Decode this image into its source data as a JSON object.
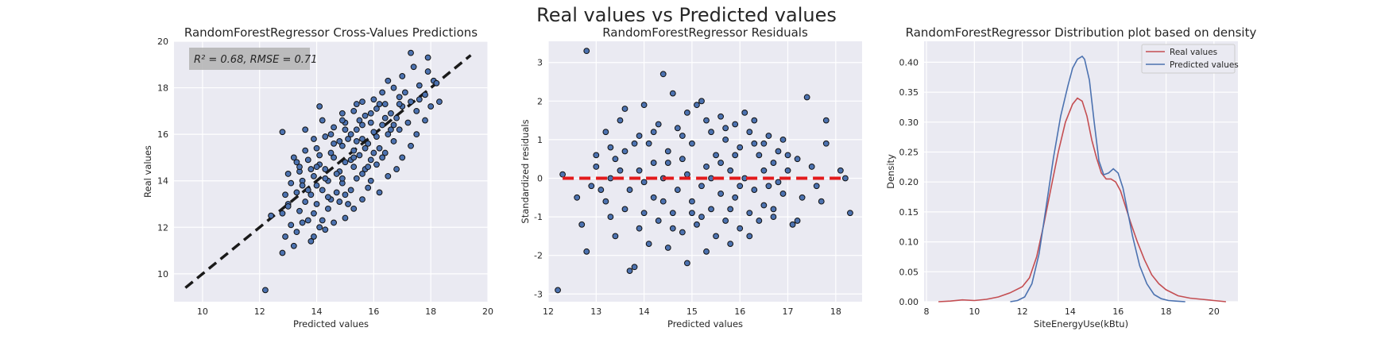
{
  "figure": {
    "suptitle": "Real values vs Predicted values"
  },
  "chart_data": [
    {
      "type": "scatter",
      "title": "RandomForestRegressor Cross-Values Predictions",
      "xlabel": "Predicted values",
      "ylabel": "Real values",
      "xlim": [
        9,
        20
      ],
      "ylim": [
        8.8,
        20
      ],
      "xticks": [
        10,
        12,
        14,
        16,
        18,
        20
      ],
      "yticks": [
        10,
        12,
        14,
        16,
        18,
        20
      ],
      "grid": true,
      "annotation": {
        "r2_text": "R² = 0.68, RMSE = 0.71"
      },
      "reference_line": {
        "style": "dashed",
        "color": "#1a1a1a",
        "points": [
          [
            9.4,
            9.4
          ],
          [
            19.4,
            19.4
          ]
        ]
      },
      "points": [
        [
          12.2,
          9.3
        ],
        [
          12.8,
          10.9
        ],
        [
          13.2,
          11.2
        ],
        [
          12.9,
          11.6
        ],
        [
          13.3,
          11.8
        ],
        [
          13.8,
          11.4
        ],
        [
          13.9,
          11.6
        ],
        [
          14.3,
          11.9
        ],
        [
          13.1,
          12.1
        ],
        [
          13.5,
          12.2
        ],
        [
          13.7,
          12.3
        ],
        [
          14.1,
          12.0
        ],
        [
          14.6,
          12.2
        ],
        [
          12.4,
          12.5
        ],
        [
          12.8,
          12.6
        ],
        [
          13.4,
          12.7
        ],
        [
          13.9,
          12.6
        ],
        [
          14.4,
          12.8
        ],
        [
          15.0,
          12.4
        ],
        [
          15.3,
          12.8
        ],
        [
          13.0,
          13.0
        ],
        [
          13.6,
          13.1
        ],
        [
          14.0,
          13.0
        ],
        [
          14.5,
          13.2
        ],
        [
          15.1,
          13.0
        ],
        [
          15.6,
          13.2
        ],
        [
          12.9,
          13.4
        ],
        [
          13.3,
          13.5
        ],
        [
          13.8,
          13.4
        ],
        [
          14.2,
          13.6
        ],
        [
          14.7,
          13.5
        ],
        [
          15.2,
          13.6
        ],
        [
          15.8,
          13.7
        ],
        [
          16.2,
          13.5
        ],
        [
          13.1,
          13.9
        ],
        [
          13.5,
          14.0
        ],
        [
          14.0,
          13.8
        ],
        [
          14.4,
          14.0
        ],
        [
          14.9,
          13.9
        ],
        [
          15.4,
          14.1
        ],
        [
          15.9,
          14.0
        ],
        [
          16.5,
          14.2
        ],
        [
          13.0,
          14.3
        ],
        [
          13.4,
          14.4
        ],
        [
          13.9,
          14.2
        ],
        [
          14.3,
          14.5
        ],
        [
          14.8,
          14.4
        ],
        [
          15.3,
          14.6
        ],
        [
          15.7,
          14.5
        ],
        [
          16.1,
          14.7
        ],
        [
          16.8,
          14.5
        ],
        [
          13.3,
          14.8
        ],
        [
          13.7,
          14.9
        ],
        [
          14.1,
          14.7
        ],
        [
          14.6,
          15.0
        ],
        [
          15.0,
          14.8
        ],
        [
          15.5,
          15.1
        ],
        [
          15.9,
          14.9
        ],
        [
          16.4,
          15.2
        ],
        [
          17.0,
          15.0
        ],
        [
          13.6,
          15.3
        ],
        [
          14.0,
          15.4
        ],
        [
          14.5,
          15.2
        ],
        [
          14.9,
          15.5
        ],
        [
          15.3,
          15.3
        ],
        [
          15.8,
          15.6
        ],
        [
          16.2,
          15.4
        ],
        [
          16.7,
          15.7
        ],
        [
          17.3,
          15.5
        ],
        [
          13.9,
          15.8
        ],
        [
          14.3,
          15.9
        ],
        [
          14.8,
          15.7
        ],
        [
          15.2,
          16.0
        ],
        [
          15.6,
          15.8
        ],
        [
          16.0,
          16.1
        ],
        [
          16.5,
          16.0
        ],
        [
          16.9,
          16.2
        ],
        [
          17.5,
          16.0
        ],
        [
          12.8,
          16.1
        ],
        [
          14.6,
          16.3
        ],
        [
          15.0,
          16.5
        ],
        [
          15.4,
          16.2
        ],
        [
          15.9,
          16.5
        ],
        [
          16.3,
          16.4
        ],
        [
          16.8,
          16.7
        ],
        [
          17.2,
          16.5
        ],
        [
          17.8,
          16.6
        ],
        [
          14.9,
          16.9
        ],
        [
          15.3,
          17.0
        ],
        [
          15.7,
          16.8
        ],
        [
          16.1,
          17.1
        ],
        [
          16.6,
          16.9
        ],
        [
          17.0,
          17.2
        ],
        [
          17.5,
          17.0
        ],
        [
          18.0,
          17.2
        ],
        [
          15.6,
          17.4
        ],
        [
          16.0,
          17.5
        ],
        [
          16.4,
          17.3
        ],
        [
          16.9,
          17.6
        ],
        [
          17.3,
          17.4
        ],
        [
          17.8,
          17.7
        ],
        [
          18.3,
          17.4
        ],
        [
          14.1,
          17.2
        ],
        [
          16.3,
          17.8
        ],
        [
          16.7,
          18.0
        ],
        [
          17.1,
          17.8
        ],
        [
          17.6,
          18.1
        ],
        [
          16.5,
          18.3
        ],
        [
          18.1,
          18.3
        ],
        [
          18.2,
          18.2
        ],
        [
          17.0,
          18.5
        ],
        [
          17.4,
          18.9
        ],
        [
          17.9,
          18.7
        ],
        [
          17.3,
          19.5
        ],
        [
          17.9,
          19.3
        ],
        [
          15.4,
          17.3
        ],
        [
          14.2,
          16.6
        ],
        [
          13.6,
          16.2
        ],
        [
          14.5,
          16.0
        ],
        [
          13.2,
          15.0
        ],
        [
          15.6,
          14.3
        ],
        [
          16.3,
          15.0
        ],
        [
          15.0,
          13.4
        ],
        [
          14.2,
          12.3
        ],
        [
          16.0,
          15.2
        ],
        [
          15.1,
          15.8
        ],
        [
          14.7,
          14.3
        ],
        [
          15.5,
          16.6
        ],
        [
          16.6,
          16.2
        ],
        [
          14.0,
          14.6
        ],
        [
          13.5,
          13.8
        ],
        [
          14.9,
          14.1
        ],
        [
          15.7,
          15.4
        ],
        [
          16.4,
          16.7
        ],
        [
          15.2,
          14.9
        ],
        [
          14.4,
          13.3
        ],
        [
          13.8,
          14.5
        ],
        [
          15.9,
          16.9
        ],
        [
          16.9,
          17.3
        ],
        [
          14.6,
          15.6
        ],
        [
          13.0,
          12.9
        ],
        [
          16.1,
          15.9
        ],
        [
          15.3,
          15.0
        ],
        [
          14.3,
          14.1
        ],
        [
          17.6,
          17.5
        ],
        [
          15.0,
          16.2
        ],
        [
          14.8,
          13.1
        ],
        [
          13.4,
          14.6
        ],
        [
          16.7,
          16.4
        ],
        [
          15.8,
          14.6
        ],
        [
          14.1,
          15.1
        ],
        [
          15.4,
          15.7
        ],
        [
          16.2,
          17.3
        ],
        [
          13.7,
          13.6
        ],
        [
          14.9,
          16.6
        ],
        [
          15.6,
          16.4
        ]
      ]
    },
    {
      "type": "scatter",
      "title": "RandomForestRegressor Residuals",
      "xlabel": "Predicted values",
      "ylabel": "Standardized residuals",
      "xlim": [
        12,
        18.55
      ],
      "ylim": [
        -3.2,
        3.55
      ],
      "xticks": [
        12,
        13,
        14,
        15,
        16,
        17,
        18
      ],
      "yticks": [
        -3,
        -2,
        -1,
        0,
        1,
        2,
        3
      ],
      "grid": true,
      "reference_line": {
        "style": "dashed",
        "color": "#e31a1c",
        "points": [
          [
            12.3,
            0
          ],
          [
            18.2,
            0
          ]
        ]
      },
      "points": [
        [
          12.2,
          -2.9
        ],
        [
          12.8,
          3.3
        ],
        [
          12.3,
          0.1
        ],
        [
          12.6,
          -0.5
        ],
        [
          12.7,
          -1.2
        ],
        [
          12.9,
          -0.2
        ],
        [
          12.8,
          -1.9
        ],
        [
          13.0,
          0.6
        ],
        [
          13.1,
          -0.3
        ],
        [
          13.0,
          0.3
        ],
        [
          13.2,
          1.2
        ],
        [
          13.3,
          -1.0
        ],
        [
          13.3,
          0.8
        ],
        [
          13.2,
          -0.6
        ],
        [
          13.4,
          -1.5
        ],
        [
          13.5,
          0.2
        ],
        [
          13.5,
          1.5
        ],
        [
          13.6,
          -0.8
        ],
        [
          13.6,
          1.8
        ],
        [
          13.7,
          -2.4
        ],
        [
          13.8,
          -2.3
        ],
        [
          13.8,
          0.9
        ],
        [
          13.9,
          -1.3
        ],
        [
          13.9,
          1.1
        ],
        [
          14.0,
          -0.1
        ],
        [
          14.0,
          1.9
        ],
        [
          14.1,
          -1.7
        ],
        [
          14.2,
          0.4
        ],
        [
          14.2,
          -0.5
        ],
        [
          14.3,
          1.4
        ],
        [
          14.3,
          -1.1
        ],
        [
          14.4,
          2.7
        ],
        [
          14.4,
          0.0
        ],
        [
          14.5,
          -1.8
        ],
        [
          14.5,
          0.7
        ],
        [
          14.6,
          2.2
        ],
        [
          14.6,
          -0.9
        ],
        [
          14.7,
          1.3
        ],
        [
          14.7,
          -0.3
        ],
        [
          14.8,
          -1.4
        ],
        [
          14.8,
          0.5
        ],
        [
          14.9,
          -2.2
        ],
        [
          14.9,
          1.7
        ],
        [
          15.0,
          -0.6
        ],
        [
          15.0,
          0.9
        ],
        [
          15.1,
          1.9
        ],
        [
          15.1,
          -1.2
        ],
        [
          15.2,
          -0.2
        ],
        [
          15.2,
          2.0
        ],
        [
          15.3,
          -1.9
        ],
        [
          15.3,
          0.3
        ],
        [
          15.4,
          1.2
        ],
        [
          15.4,
          -0.8
        ],
        [
          15.5,
          -1.5
        ],
        [
          15.5,
          0.6
        ],
        [
          15.6,
          1.6
        ],
        [
          15.6,
          -0.4
        ],
        [
          15.7,
          -1.1
        ],
        [
          15.7,
          1.0
        ],
        [
          15.8,
          0.2
        ],
        [
          15.8,
          -1.7
        ],
        [
          15.9,
          1.4
        ],
        [
          15.9,
          -0.5
        ],
        [
          16.0,
          0.8
        ],
        [
          16.0,
          -1.3
        ],
        [
          16.1,
          1.7
        ],
        [
          16.1,
          0.0
        ],
        [
          16.2,
          -0.9
        ],
        [
          16.2,
          1.2
        ],
        [
          16.3,
          -0.3
        ],
        [
          16.3,
          1.5
        ],
        [
          16.4,
          -1.1
        ],
        [
          16.4,
          0.6
        ],
        [
          16.5,
          0.9
        ],
        [
          16.5,
          -0.7
        ],
        [
          16.6,
          1.1
        ],
        [
          16.6,
          -0.2
        ],
        [
          16.7,
          0.4
        ],
        [
          16.7,
          -1.0
        ],
        [
          16.8,
          0.7
        ],
        [
          16.9,
          -0.4
        ],
        [
          16.9,
          1.0
        ],
        [
          17.0,
          0.2
        ],
        [
          17.1,
          -1.2
        ],
        [
          17.2,
          -1.1
        ],
        [
          17.2,
          0.5
        ],
        [
          17.3,
          -0.5
        ],
        [
          17.4,
          2.1
        ],
        [
          17.5,
          0.3
        ],
        [
          17.6,
          -0.2
        ],
        [
          17.7,
          -0.6
        ],
        [
          17.8,
          0.9
        ],
        [
          17.8,
          1.5
        ],
        [
          18.1,
          0.2
        ],
        [
          18.2,
          0.0
        ],
        [
          18.3,
          -0.9
        ],
        [
          13.4,
          0.5
        ],
        [
          13.7,
          -0.3
        ],
        [
          14.1,
          0.9
        ],
        [
          14.4,
          -0.6
        ],
        [
          14.8,
          1.1
        ],
        [
          15.2,
          -1.0
        ],
        [
          15.6,
          0.4
        ],
        [
          16.0,
          -0.2
        ],
        [
          16.3,
          0.9
        ],
        [
          16.7,
          -0.8
        ],
        [
          13.9,
          0.2
        ],
        [
          14.6,
          -1.3
        ],
        [
          15.4,
          0.0
        ],
        [
          15.9,
          0.6
        ],
        [
          16.5,
          0.2
        ],
        [
          14.2,
          1.2
        ],
        [
          15.0,
          -0.9
        ],
        [
          15.7,
          1.3
        ],
        [
          16.8,
          -0.1
        ],
        [
          13.6,
          0.7
        ],
        [
          14.9,
          0.1
        ],
        [
          16.2,
          -1.5
        ],
        [
          15.3,
          1.5
        ],
        [
          14.0,
          -0.9
        ],
        [
          13.3,
          0.0
        ],
        [
          17.0,
          0.6
        ],
        [
          15.8,
          -0.8
        ],
        [
          14.5,
          0.4
        ]
      ]
    },
    {
      "type": "line",
      "title": "RandomForestRegressor Distribution plot based on density",
      "xlabel": "SiteEnergyUse(kBtu)",
      "ylabel": "Density",
      "xlim": [
        7.9,
        21.0
      ],
      "ylim": [
        0,
        0.435
      ],
      "xticks": [
        8,
        10,
        12,
        14,
        16,
        18,
        20
      ],
      "yticks": [
        0.0,
        0.05,
        0.1,
        0.15,
        0.2,
        0.25,
        0.3,
        0.35,
        0.4
      ],
      "grid": true,
      "legend": "top-right",
      "series": [
        {
          "name": "Real values",
          "color": "#c44e52",
          "x": [
            8.5,
            9.0,
            9.5,
            10.0,
            10.5,
            11.0,
            11.5,
            12.0,
            12.3,
            12.6,
            12.9,
            13.2,
            13.5,
            13.8,
            14.1,
            14.3,
            14.5,
            14.7,
            14.9,
            15.1,
            15.3,
            15.5,
            15.7,
            15.9,
            16.1,
            16.3,
            16.5,
            16.8,
            17.1,
            17.4,
            17.7,
            18.0,
            18.5,
            19.0,
            19.5,
            20.0,
            20.5
          ],
          "values": [
            0.0,
            0.001,
            0.003,
            0.002,
            0.004,
            0.008,
            0.015,
            0.025,
            0.04,
            0.075,
            0.13,
            0.19,
            0.25,
            0.3,
            0.33,
            0.34,
            0.335,
            0.31,
            0.27,
            0.24,
            0.215,
            0.205,
            0.205,
            0.2,
            0.185,
            0.16,
            0.135,
            0.1,
            0.07,
            0.045,
            0.03,
            0.02,
            0.01,
            0.006,
            0.004,
            0.002,
            0.0
          ]
        },
        {
          "name": "Predicted values",
          "color": "#4c72b0",
          "x": [
            11.5,
            11.8,
            12.1,
            12.4,
            12.7,
            13.0,
            13.3,
            13.6,
            13.9,
            14.1,
            14.3,
            14.5,
            14.6,
            14.8,
            15.0,
            15.2,
            15.4,
            15.6,
            15.8,
            16.0,
            16.2,
            16.4,
            16.6,
            16.9,
            17.2,
            17.5,
            17.8,
            18.1,
            18.4,
            18.8
          ],
          "values": [
            0.0,
            0.002,
            0.008,
            0.03,
            0.08,
            0.16,
            0.24,
            0.31,
            0.36,
            0.39,
            0.405,
            0.41,
            0.405,
            0.37,
            0.3,
            0.235,
            0.212,
            0.215,
            0.222,
            0.215,
            0.19,
            0.15,
            0.11,
            0.06,
            0.03,
            0.012,
            0.005,
            0.002,
            0.001,
            0.0
          ]
        }
      ]
    }
  ]
}
